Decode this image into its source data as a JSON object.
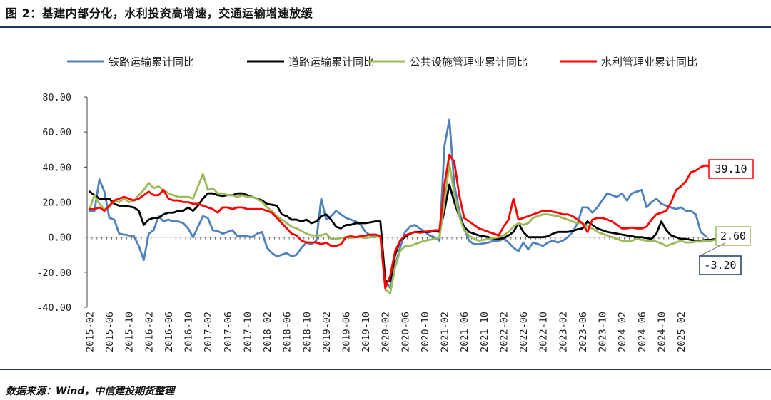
{
  "title": "图 2：基建内部分化，水利投资高增速，交通运输增速放缓",
  "source": "数据来源：Wind，中信建投期货整理",
  "chart_data": {
    "type": "line",
    "ylim": [
      -40,
      80
    ],
    "yticks": [
      "80.00",
      "60.00",
      "40.00",
      "20.00",
      "0.00",
      "-20.00",
      "-40.00"
    ],
    "ytick_values": [
      80,
      60,
      40,
      20,
      0,
      -20,
      -40
    ],
    "xtick_labels": [
      "2015-02",
      "2015-06",
      "2015-10",
      "2016-02",
      "2016-06",
      "2016-10",
      "2017-02",
      "2017-06",
      "2017-10",
      "2018-02",
      "2018-06",
      "2018-10",
      "2019-02",
      "2019-06",
      "2019-10",
      "2020-02",
      "2020-06",
      "2020-10",
      "2021-02",
      "2021-06",
      "2021-10",
      "2022-02",
      "2022-06",
      "2022-10",
      "2023-02",
      "2023-06",
      "2023-10",
      "2024-02",
      "2024-06",
      "2024-10",
      "2025-02"
    ],
    "legend_position": "top",
    "grid": false,
    "series": [
      {
        "name": "铁路运输累计同比",
        "color": "#4f81bd",
        "values": [
          15,
          15,
          33,
          26,
          11,
          10,
          2,
          1.5,
          1,
          0.5,
          -5,
          -13,
          2,
          4,
          12,
          9,
          10,
          9,
          9,
          8,
          5,
          0,
          6,
          12,
          11,
          4,
          3.5,
          2,
          3,
          4,
          0.5,
          0.5,
          0.5,
          0,
          2,
          3,
          -6,
          -9,
          -11,
          -10,
          -9,
          -11,
          -10,
          -6,
          -3,
          -4,
          -2,
          22,
          10,
          12,
          15,
          13,
          11,
          10,
          9,
          7,
          3,
          1,
          1,
          1,
          -25,
          -29,
          -16,
          -6,
          3,
          6,
          7,
          5,
          3,
          1,
          0,
          -2,
          52,
          67,
          30,
          15,
          5,
          -2,
          -4,
          -4,
          -3.5,
          -3,
          -2,
          -2,
          -1,
          -3,
          -6,
          -8,
          -3,
          -7,
          -3,
          -4,
          -5,
          -3,
          -2,
          -3,
          -2,
          0,
          3,
          8,
          17,
          17,
          14,
          17,
          21,
          25,
          24,
          23,
          25,
          21,
          25,
          26,
          27,
          17,
          20,
          22,
          19,
          18,
          17,
          16,
          17,
          15,
          15,
          13,
          3,
          0.5
        ]
      },
      {
        "name": "道路运输累计同比",
        "color": "#000000",
        "values": [
          26,
          24,
          22,
          22,
          22,
          19,
          18,
          18,
          17.5,
          17,
          15,
          7,
          10,
          11,
          11,
          13,
          14,
          14,
          15,
          15,
          17,
          15,
          18,
          22,
          25,
          25,
          24,
          23.5,
          24,
          24,
          25,
          25,
          24,
          23,
          22,
          21,
          19,
          18.5,
          18,
          13,
          12,
          10,
          10,
          9,
          10,
          8,
          9,
          12,
          13,
          10,
          6,
          5,
          7,
          7,
          8,
          8,
          8,
          8.5,
          9,
          9,
          -25,
          -25,
          -10,
          -2,
          0,
          2,
          3,
          3,
          3,
          3,
          3.5,
          3,
          15,
          30,
          20,
          12,
          6,
          3,
          2,
          1,
          0.5,
          0,
          -1,
          -1,
          -0.5,
          1,
          3,
          8,
          3,
          0,
          0,
          0,
          0,
          0.5,
          2,
          3,
          3,
          3,
          3.5,
          4.5,
          5,
          9,
          7,
          5,
          4,
          3,
          2.5,
          2,
          1.5,
          1,
          0.5,
          0,
          0,
          -0.5,
          -1,
          2,
          9,
          4,
          1,
          0,
          -1,
          -1,
          -1.5,
          -2,
          -2,
          -1.5,
          -1.5,
          -1,
          -2.5,
          -3.2
        ]
      },
      {
        "name": "公共设施管理业累计同比",
        "color": "#9bbb59",
        "values": [
          16,
          24,
          19,
          16,
          17,
          21,
          20,
          22,
          20,
          21,
          24,
          27,
          31,
          28,
          29,
          27,
          25,
          24,
          23,
          23,
          23,
          22,
          29,
          36,
          27,
          28,
          25,
          25,
          24,
          24,
          23,
          24,
          23,
          23,
          22,
          20,
          17,
          15,
          12,
          10,
          8,
          6,
          5,
          3.5,
          2,
          1,
          1,
          1,
          2,
          -1,
          -1,
          -0.5,
          0,
          -0.5,
          0,
          0,
          -0.5,
          0,
          0,
          1,
          -30,
          -32,
          -17,
          -8,
          -5,
          -5,
          -4,
          -3,
          -2,
          -1.5,
          -1,
          0,
          20,
          42,
          25,
          12,
          4,
          1,
          -1,
          -2,
          -1.5,
          -1,
          -0.5,
          0,
          1,
          3,
          6,
          8,
          7,
          8,
          11,
          12,
          13,
          13,
          12.5,
          12,
          11,
          10,
          9,
          8,
          8,
          6,
          5,
          3,
          2,
          1,
          0,
          -1,
          -2,
          -2.5,
          -2,
          -1,
          -1.5,
          -2,
          -2,
          -2.5,
          -3.5,
          -5,
          -4,
          -3,
          -2,
          -3,
          -3,
          -2.5,
          -2.5,
          -2,
          -2,
          -1.5,
          2.6
        ]
      },
      {
        "name": "水利管理业累计同比",
        "color": "#ff0000",
        "values": [
          16,
          16,
          17,
          15,
          18,
          21,
          22,
          23,
          22,
          21,
          22,
          24,
          26,
          24,
          24,
          27,
          22,
          21,
          21,
          20,
          20,
          19,
          19,
          18,
          17,
          16,
          14,
          17,
          17,
          16,
          17,
          17,
          16,
          16,
          16,
          16,
          15,
          14,
          11,
          8,
          5,
          2,
          1,
          -2,
          -3,
          -3,
          -3,
          -4,
          -3,
          -5,
          -5,
          -4,
          0,
          0.5,
          0,
          0.5,
          1,
          1.5,
          1.5,
          0.5,
          -29,
          -22,
          -8,
          -2,
          1,
          2,
          3,
          2.5,
          3,
          3.5,
          4,
          4,
          30,
          47,
          43,
          24,
          11,
          9,
          7,
          5,
          4,
          3,
          2,
          1,
          6,
          10,
          22,
          10,
          11,
          12,
          13,
          14,
          15,
          15,
          14.5,
          14,
          13,
          13,
          12,
          10,
          8,
          3,
          10,
          11,
          11,
          10,
          9,
          7,
          5,
          5,
          5.5,
          5,
          5,
          6,
          10,
          13,
          14,
          15,
          20,
          27,
          29,
          32,
          37,
          38,
          40,
          41,
          40,
          39.1
        ]
      }
    ],
    "annotations": [
      {
        "text": "39.10",
        "color": "#ff0000",
        "series": 3
      },
      {
        "text": "2.60",
        "color": "#9bbb59",
        "series": 2
      },
      {
        "text": "-3.20",
        "color": "#1f3864",
        "series": 1
      }
    ]
  }
}
